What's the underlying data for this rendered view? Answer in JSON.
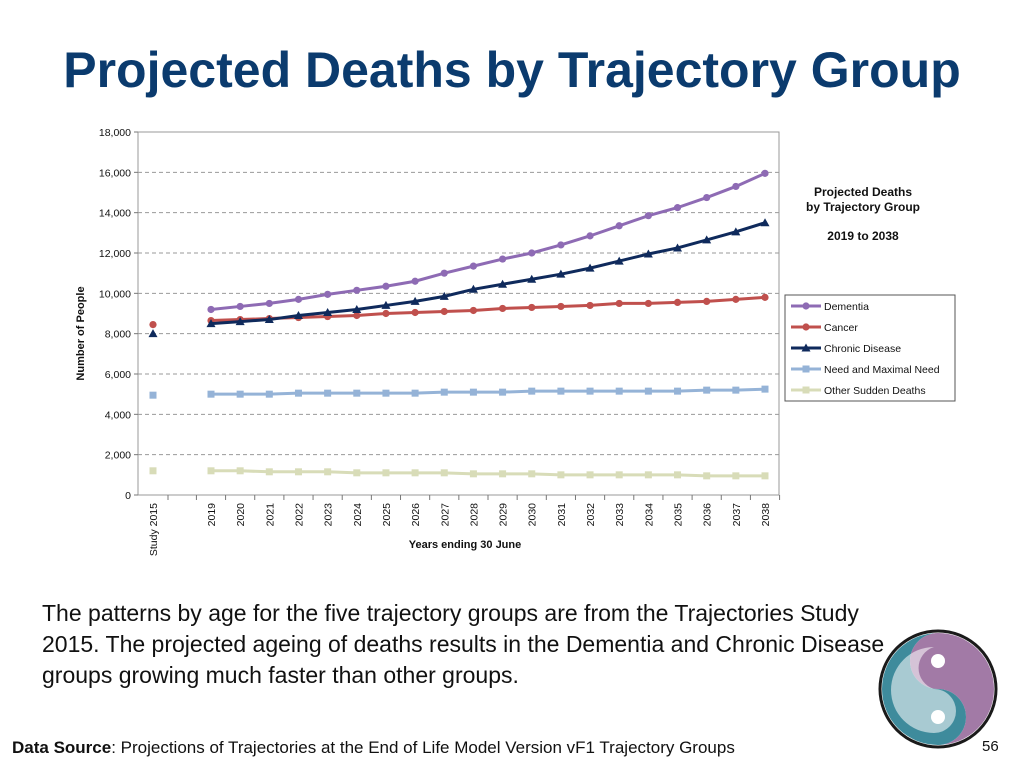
{
  "slide": {
    "title": "Projected Deaths by Trajectory Group",
    "body": "The patterns by age for the five trajectory groups are from the Trajectories Study 2015. The projected ageing of deaths results in the Dementia and Chronic Disease groups growing much faster than other groups.",
    "footer_label": "Data Source",
    "footer_text": ": Projections of Trajectories at the End of Life Model Version vF1 Trajectory Groups",
    "page_number": "56"
  },
  "colors": {
    "title": "#0b3b6e",
    "dementia": "#8e6bb4",
    "cancer": "#c0504d",
    "chronic": "#0f2a5c",
    "need": "#95b3d7",
    "sudden": "#d8dcb8"
  },
  "chart_data": {
    "type": "line",
    "title_lines": [
      "Projected Deaths",
      "by Trajectory Group",
      "2019 to 2038"
    ],
    "xlabel": "Years ending 30 June",
    "ylabel": "Number of People",
    "ylim": [
      0,
      18000
    ],
    "yticks": [
      "0",
      "2,000",
      "4,000",
      "6,000",
      "8,000",
      "10,000",
      "12,000",
      "14,000",
      "16,000",
      "18,000"
    ],
    "grid": true,
    "legend_position": "right",
    "study_label": "Study 2015",
    "categories": [
      "2019",
      "2020",
      "2021",
      "2022",
      "2023",
      "2024",
      "2025",
      "2026",
      "2027",
      "2028",
      "2029",
      "2030",
      "2031",
      "2032",
      "2033",
      "2034",
      "2035",
      "2036",
      "2037",
      "2038"
    ],
    "series": [
      {
        "name": "Dementia",
        "marker": "circle",
        "values": [
          9200,
          9350,
          9500,
          9700,
          9950,
          10150,
          10350,
          10600,
          11000,
          11350,
          11700,
          12000,
          12400,
          12850,
          13350,
          13850,
          14250,
          14750,
          15300,
          15950
        ]
      },
      {
        "name": "Cancer",
        "marker": "circle",
        "study_value": 8450,
        "values": [
          8650,
          8700,
          8750,
          8800,
          8850,
          8900,
          9000,
          9050,
          9100,
          9150,
          9250,
          9300,
          9350,
          9400,
          9500,
          9500,
          9550,
          9600,
          9700,
          9800
        ]
      },
      {
        "name": "Chronic Disease",
        "marker": "triangle",
        "study_value": 8000,
        "values": [
          8500,
          8600,
          8700,
          8900,
          9050,
          9200,
          9400,
          9600,
          9850,
          10200,
          10450,
          10700,
          10950,
          11250,
          11600,
          11950,
          12250,
          12650,
          13050,
          13500
        ]
      },
      {
        "name": "Need and Maximal Need",
        "marker": "square",
        "study_value": 4950,
        "values": [
          5000,
          5000,
          5000,
          5050,
          5050,
          5050,
          5050,
          5050,
          5100,
          5100,
          5100,
          5150,
          5150,
          5150,
          5150,
          5150,
          5150,
          5200,
          5200,
          5250
        ]
      },
      {
        "name": "Other Sudden Deaths",
        "marker": "square",
        "study_value": 1200,
        "values": [
          1200,
          1200,
          1150,
          1150,
          1150,
          1100,
          1100,
          1100,
          1100,
          1050,
          1050,
          1050,
          1000,
          1000,
          1000,
          1000,
          1000,
          950,
          950,
          950
        ]
      }
    ]
  }
}
